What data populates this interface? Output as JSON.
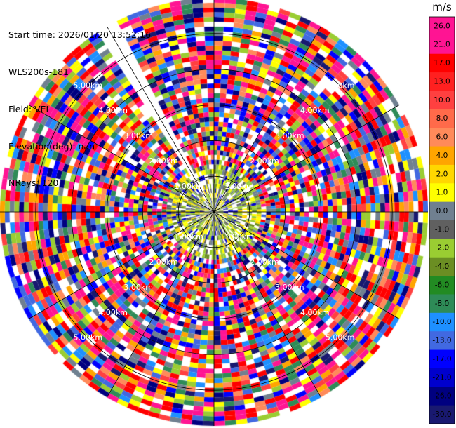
{
  "header": {
    "start_time": "Start time: 2026/01/20 13:52:16",
    "instrument": "WLS200s-181",
    "field": "Field: VEL",
    "elevation": "Elevation(deg): nan",
    "nrays": "NRays: 120"
  },
  "chart_data": {
    "type": "ppi",
    "field": "VEL",
    "nrays": 120,
    "range_rings": [
      {
        "label": "1.00km",
        "range_km": 1.0
      },
      {
        "label": "2.00km",
        "range_km": 2.0
      },
      {
        "label": "3.00km",
        "range_km": 3.0
      },
      {
        "label": "4.00km",
        "range_km": 4.0
      },
      {
        "label": "5.00km",
        "range_km": 5.0
      }
    ],
    "max_range_km": 6.0,
    "gap_sector_deg": [
      -33,
      -27
    ],
    "colorbar": {
      "unit": "m/s",
      "ticks": [
        "26.0",
        "21.0",
        "17.0",
        "13.0",
        "10.0",
        "8.0",
        "6.0",
        "4.0",
        "2.0",
        "1.0",
        "0.0",
        "-1.0",
        "-2.0",
        "-4.0",
        "-6.0",
        "-8.0",
        "-10.0",
        "-13.0",
        "-17.0",
        "-21.0",
        "-26.0",
        "-30.0"
      ],
      "colors": [
        "#ff1493",
        "#ff1493",
        "#ff0000",
        "#ff2020",
        "#ff4040",
        "#ff6a4a",
        "#ff8a5a",
        "#ffa500",
        "#ffd700",
        "#ffff00",
        "#708090",
        "#606060",
        "#9acd32",
        "#6b8e23",
        "#228b22",
        "#2e8b57",
        "#1e90ff",
        "#4169e1",
        "#0000ff",
        "#0000cd",
        "#000080",
        "#191970"
      ]
    }
  }
}
